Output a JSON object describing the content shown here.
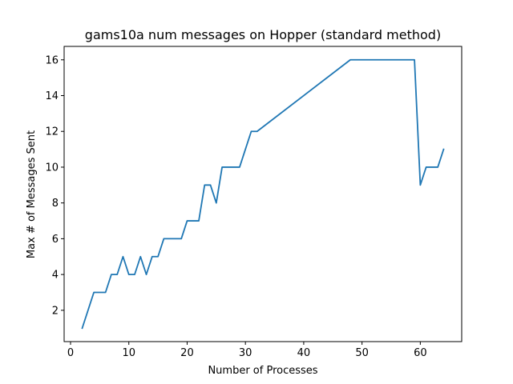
{
  "chart_data": {
    "type": "line",
    "title": "gams10a num messages on Hopper (standard method)",
    "xlabel": "Number of Processes",
    "ylabel": "Max # of Messages Sent",
    "xlim": [
      -1.1,
      67.1
    ],
    "ylim": [
      0.25,
      16.75
    ],
    "xticks": [
      0,
      10,
      20,
      30,
      40,
      50,
      60
    ],
    "yticks": [
      2,
      4,
      6,
      8,
      10,
      12,
      14,
      16
    ],
    "grid": false,
    "series": [
      {
        "color": "#1f77b4",
        "x": [
          2,
          3,
          4,
          5,
          6,
          7,
          8,
          9,
          10,
          11,
          12,
          13,
          14,
          15,
          16,
          17,
          18,
          19,
          20,
          21,
          22,
          23,
          24,
          25,
          26,
          27,
          28,
          29,
          30,
          31,
          32,
          48,
          49,
          50,
          51,
          52,
          53,
          54,
          55,
          56,
          57,
          58,
          59,
          60,
          61,
          62,
          63,
          64
        ],
        "y": [
          1,
          2,
          3,
          3,
          3,
          4,
          4,
          5,
          4,
          4,
          5,
          4,
          5,
          5,
          6,
          6,
          6,
          6,
          7,
          7,
          7,
          9,
          9,
          8,
          10,
          10,
          10,
          10,
          11,
          12,
          12,
          16,
          16,
          16,
          16,
          16,
          16,
          16,
          16,
          16,
          16,
          16,
          16,
          9,
          10,
          10,
          10,
          11
        ]
      }
    ]
  }
}
